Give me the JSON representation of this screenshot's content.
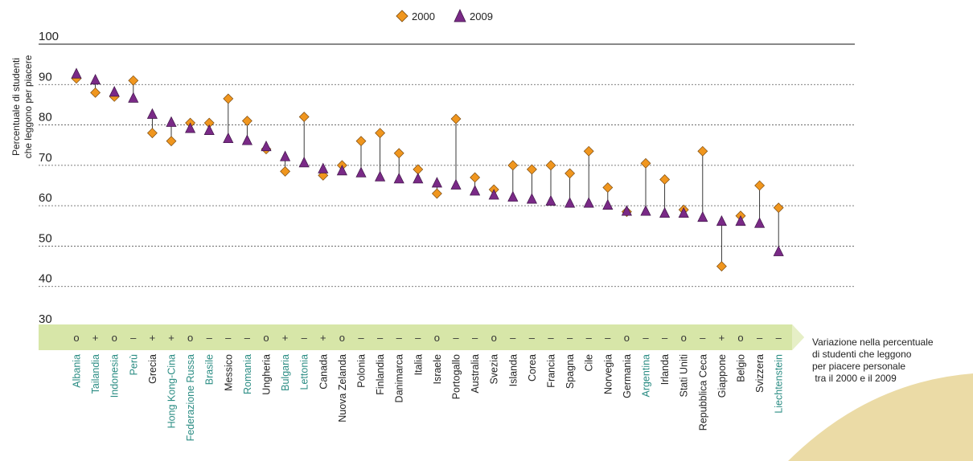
{
  "chart_data": {
    "type": "scatter",
    "ylabel_lines": [
      "Percentuale di studenti",
      "che leggono per piacere"
    ],
    "ylim": [
      30,
      100
    ],
    "yticks": [
      30,
      40,
      50,
      60,
      70,
      80,
      90,
      100
    ],
    "grid": true,
    "legend_position": "top-center",
    "categories": [
      "Albania",
      "Tailandia",
      "Indonesia",
      "Perù",
      "Grecia",
      "Hong Kong-Cina",
      "Federazione Russa",
      "Brasile",
      "Messico",
      "Romania",
      "Ungheria",
      "Bulgaria",
      "Lettonia",
      "Canada",
      "Nuova Zelanda",
      "Polonia",
      "Finlandia",
      "Danimarca",
      "Italia",
      "Israele",
      "Portogallo",
      "Australia",
      "Svezia",
      "Islanda",
      "Corea",
      "Francia",
      "Spagna",
      "Cile",
      "Norvegia",
      "Germania",
      "Argentina",
      "Irlanda",
      "Stati Uniti",
      "Repubblica Ceca",
      "Giappone",
      "Belgio",
      "Svizzera",
      "Liechtenstein"
    ],
    "partner_flags": [
      true,
      true,
      true,
      true,
      false,
      true,
      true,
      true,
      false,
      true,
      false,
      true,
      true,
      false,
      false,
      false,
      false,
      false,
      false,
      false,
      false,
      false,
      false,
      false,
      false,
      false,
      false,
      false,
      false,
      false,
      true,
      false,
      false,
      false,
      false,
      false,
      false,
      true
    ],
    "change_signs": [
      "o",
      "+",
      "o",
      "–",
      "+",
      "+",
      "o",
      "–",
      "–",
      "–",
      "o",
      "+",
      "–",
      "+",
      "o",
      "–",
      "–",
      "–",
      "–",
      "o",
      "–",
      "–",
      "o",
      "–",
      "–",
      "–",
      "–",
      "–",
      "–",
      "o",
      "–",
      "–",
      "o",
      "–",
      "+",
      "o",
      "–",
      "–"
    ],
    "series": [
      {
        "name": "2000",
        "marker": "diamond",
        "values": [
          91.5,
          88,
          87,
          91,
          78,
          76,
          80.5,
          80.5,
          86.5,
          81,
          74,
          68.5,
          82,
          67.5,
          70,
          76,
          78,
          73,
          69,
          63,
          81.5,
          67,
          64,
          70,
          69,
          70,
          68,
          73.5,
          64.5,
          58.5,
          70.5,
          66.5,
          59,
          73.5,
          45,
          57.5,
          65,
          59.5
        ]
      },
      {
        "name": "2009",
        "marker": "triangle",
        "values": [
          92.5,
          91,
          88,
          86.5,
          82.5,
          80.5,
          79,
          78.5,
          76.5,
          76,
          74.5,
          72,
          70.5,
          69,
          68.5,
          68,
          67,
          66.5,
          66.5,
          65.5,
          65,
          63.5,
          62.5,
          62,
          61.5,
          61,
          60.5,
          60.5,
          60,
          58.5,
          58.5,
          58,
          58,
          57,
          56,
          56,
          55.5,
          48.5
        ]
      }
    ],
    "annotation_lines": [
      "Variazione nella percentuale",
      "di studenti che leggono",
      "per piacere personale",
      " tra il 2000 e il 2009"
    ]
  },
  "colors": {
    "diamond": "#f0961e",
    "triangle": "#7a2a87",
    "partner_text": "#2a8c83",
    "oecd_text": "#222222",
    "band": "#d7e6a8",
    "band_tip": "#e6efc6",
    "swoosh": "#e8d596"
  }
}
